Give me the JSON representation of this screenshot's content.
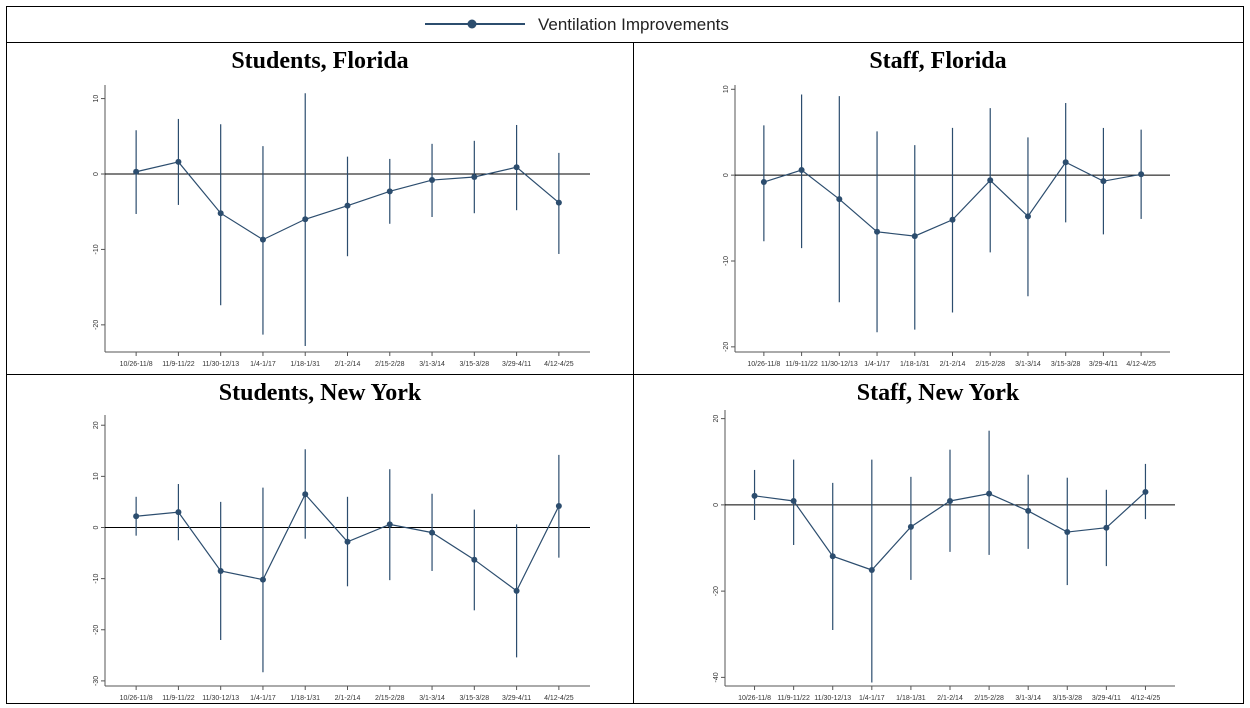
{
  "legend": {
    "label": "Ventilation Improvements",
    "color": "#2c4d6e"
  },
  "chart_data": [
    {
      "type": "line",
      "title": "Students, Florida",
      "categories": [
        "10/26-11/8",
        "11/9-11/22",
        "11/30-12/13",
        "1/4-1/17",
        "1/18-1/31",
        "2/1-2/14",
        "2/15-2/28",
        "3/1-3/14",
        "3/15-3/28",
        "3/29-4/11",
        "4/12-4/25"
      ],
      "values": [
        0.3,
        1.6,
        -5.2,
        -8.7,
        -6,
        -4.2,
        -2.3,
        -0.8,
        -0.4,
        0.9,
        -3.8
      ],
      "ci_low": [
        -5.3,
        -4.1,
        -17.4,
        -21.3,
        -22.8,
        -10.9,
        -6.6,
        -5.7,
        -5.2,
        -4.8,
        -10.6
      ],
      "ci_high": [
        5.8,
        7.3,
        6.6,
        3.7,
        10.7,
        2.3,
        2,
        4,
        4.4,
        6.5,
        2.8
      ],
      "reference_line": 0,
      "ylim": [
        -23.6,
        11.8
      ],
      "yticks": [
        -20,
        -10,
        0,
        10
      ]
    },
    {
      "type": "line",
      "title": "Staff, Florida",
      "categories": [
        "10/26-11/8",
        "11/9-11/22",
        "11/30-12/13",
        "1/4-1/17",
        "1/18-1/31",
        "2/1-2/14",
        "2/15-2/28",
        "3/1-3/14",
        "3/15-3/28",
        "3/29-4/11",
        "4/12-4/25"
      ],
      "values": [
        -0.8,
        0.6,
        -2.8,
        -6.6,
        -7.1,
        -5.2,
        -0.6,
        -4.8,
        1.5,
        -0.7,
        0.1
      ],
      "ci_low": [
        -7.7,
        -8.5,
        -14.8,
        -18.3,
        -18,
        -16,
        -9,
        -14.1,
        -5.5,
        -6.9,
        -5.1
      ],
      "ci_high": [
        5.8,
        9.4,
        9.2,
        5.1,
        3.5,
        5.5,
        7.8,
        4.4,
        8.4,
        5.5,
        5.3
      ],
      "reference_line": 0,
      "ylim": [
        -20.6,
        10.5
      ],
      "yticks": [
        -20,
        -10,
        0,
        10
      ]
    },
    {
      "type": "line",
      "title": "Students, New York",
      "categories": [
        "10/26-11/8",
        "11/9-11/22",
        "11/30-12/13",
        "1/4-1/17",
        "1/18-1/31",
        "2/1-2/14",
        "2/15-2/28",
        "3/1-3/14",
        "3/15-3/28",
        "3/29-4/11",
        "4/12-4/25"
      ],
      "values": [
        2.2,
        3,
        -8.5,
        -10.2,
        6.5,
        -2.8,
        0.6,
        -1,
        -6.3,
        -12.4,
        4.2
      ],
      "ci_low": [
        -1.6,
        -2.5,
        -22,
        -28.3,
        -2.2,
        -11.5,
        -10.3,
        -8.5,
        -16.2,
        -25.4,
        -5.9
      ],
      "ci_high": [
        6,
        8.5,
        5,
        7.8,
        15.3,
        6,
        11.4,
        6.6,
        3.5,
        0.6,
        14.2
      ],
      "reference_line": 0,
      "ylim": [
        -31,
        22
      ],
      "yticks": [
        -30,
        -20,
        -10,
        0,
        10,
        20
      ]
    },
    {
      "type": "line",
      "title": "Staff, New York",
      "categories": [
        "10/26-11/8",
        "11/9-11/22",
        "11/30-12/13",
        "1/4-1/17",
        "1/18-1/31",
        "2/1-2/14",
        "2/15-2/28",
        "3/1-3/14",
        "3/15-3/28",
        "3/29-4/11",
        "4/12-4/25"
      ],
      "values": [
        2.1,
        0.9,
        -11.9,
        -15.1,
        -5.1,
        0.9,
        2.6,
        -1.4,
        -6.3,
        -5.3,
        3
      ],
      "ci_low": [
        -3.5,
        -9.3,
        -29,
        -41.2,
        -17.4,
        -10.9,
        -11.6,
        -10.2,
        -18.6,
        -14.2,
        -3.3
      ],
      "ci_high": [
        8.1,
        10.5,
        5.1,
        10.5,
        6.5,
        12.8,
        17.2,
        7,
        6.3,
        3.5,
        9.5
      ],
      "reference_line": 0,
      "ylim": [
        -42,
        22
      ],
      "yticks": [
        -40,
        -20,
        0,
        20
      ]
    }
  ]
}
